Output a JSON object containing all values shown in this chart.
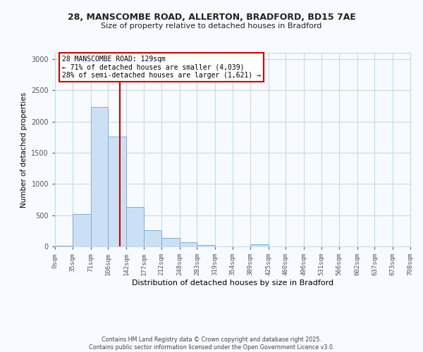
{
  "title_line1": "28, MANSCOMBE ROAD, ALLERTON, BRADFORD, BD15 7AE",
  "title_line2": "Size of property relative to detached houses in Bradford",
  "xlabel": "Distribution of detached houses by size in Bradford",
  "ylabel": "Number of detached properties",
  "bin_edges": [
    0,
    35,
    71,
    106,
    142,
    177,
    212,
    248,
    283,
    319,
    354,
    389,
    425,
    460,
    496,
    531,
    566,
    602,
    637,
    673,
    708
  ],
  "bar_heights": [
    10,
    520,
    2230,
    1760,
    630,
    260,
    140,
    70,
    20,
    5,
    2,
    30,
    5,
    2,
    1,
    1,
    1,
    1,
    1,
    1
  ],
  "bar_color": "#cce0f5",
  "bar_edge_color": "#7ab0d4",
  "property_size": 129,
  "red_line_color": "#cc0000",
  "annotation_line1": "28 MANSCOMBE ROAD: 129sqm",
  "annotation_line2": "← 71% of detached houses are smaller (4,039)",
  "annotation_line3": "28% of semi-detached houses are larger (1,621) →",
  "annotation_box_color": "#ffffff",
  "annotation_box_edge_color": "#cc0000",
  "ylim": [
    0,
    3100
  ],
  "yticks": [
    0,
    500,
    1000,
    1500,
    2000,
    2500,
    3000
  ],
  "tick_labels": [
    "0sqm",
    "35sqm",
    "71sqm",
    "106sqm",
    "142sqm",
    "177sqm",
    "212sqm",
    "248sqm",
    "283sqm",
    "319sqm",
    "354sqm",
    "389sqm",
    "425sqm",
    "460sqm",
    "496sqm",
    "531sqm",
    "566sqm",
    "602sqm",
    "637sqm",
    "673sqm",
    "708sqm"
  ],
  "footer_line1": "Contains HM Land Registry data © Crown copyright and database right 2025.",
  "footer_line2": "Contains public sector information licensed under the Open Government Licence v3.0.",
  "grid_color": "#c8d8e8",
  "background_color": "#f7fbff"
}
